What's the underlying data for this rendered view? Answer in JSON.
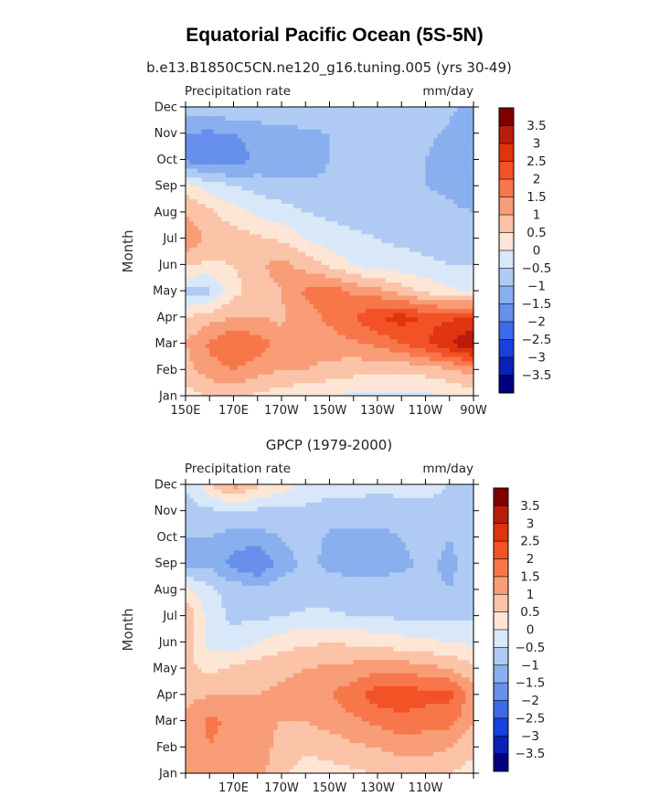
{
  "title": "Equatorial Pacific Ocean (5S-5N)",
  "chart_data": [
    {
      "type": "heatmap",
      "subtitle": "b.e13.B1850C5CN.ne120_g16.tuning.005 (yrs 30-49)",
      "variable_label": "Precipitation rate",
      "units": "mm/day",
      "ylabel": "Month",
      "y_ticks": [
        "Jan",
        "Feb",
        "Mar",
        "Apr",
        "May",
        "Jun",
        "Jul",
        "Aug",
        "Sep",
        "Oct",
        "Nov",
        "Dec"
      ],
      "x_ticks": [
        "150E",
        "170E",
        "170W",
        "150W",
        "130W",
        "110W",
        "90W"
      ],
      "x_range_deg_east": [
        150,
        270
      ],
      "rows": [
        "Jan",
        "Feb",
        "Mar",
        "Apr",
        "May",
        "Jun",
        "Jul",
        "Aug",
        "Sep",
        "Oct",
        "Nov",
        "Dec"
      ],
      "cols_lon_deg_east": [
        150,
        160,
        170,
        180,
        190,
        200,
        210,
        220,
        230,
        240,
        250,
        260,
        270
      ],
      "z": [
        [
          0.3,
          0.5,
          0.6,
          0.4,
          0.2,
          0.1,
          0.0,
          -0.1,
          -0.2,
          -0.2,
          -0.1,
          0.0,
          0.2
        ],
        [
          0.8,
          1.3,
          1.5,
          1.2,
          1.0,
          1.0,
          0.8,
          0.7,
          0.6,
          0.6,
          0.7,
          0.9,
          1.3
        ],
        [
          1.0,
          1.6,
          2.0,
          1.8,
          1.2,
          1.3,
          1.3,
          1.4,
          1.6,
          2.0,
          2.4,
          3.0,
          3.5
        ],
        [
          0.5,
          0.8,
          1.0,
          1.0,
          0.9,
          1.3,
          1.6,
          2.0,
          2.5,
          2.7,
          2.4,
          2.4,
          2.6
        ],
        [
          -0.8,
          -0.6,
          0.3,
          0.8,
          1.0,
          1.6,
          1.8,
          1.4,
          1.2,
          0.8,
          0.4,
          0.1,
          -0.1
        ],
        [
          0.6,
          0.4,
          0.5,
          0.9,
          1.2,
          0.8,
          0.4,
          0.0,
          -0.3,
          -0.3,
          -0.4,
          -0.5,
          -0.5
        ],
        [
          1.4,
          0.9,
          0.8,
          0.6,
          0.4,
          0.0,
          -0.3,
          -0.4,
          -0.5,
          -0.6,
          -0.7,
          -0.7,
          -0.8
        ],
        [
          1.0,
          0.6,
          0.2,
          -0.1,
          -0.3,
          -0.5,
          -0.6,
          -0.7,
          -0.7,
          -0.7,
          -0.8,
          -0.9,
          -1.0
        ],
        [
          0.2,
          -0.2,
          -0.5,
          -0.7,
          -0.8,
          -0.9,
          -0.9,
          -0.9,
          -0.9,
          -0.9,
          -1.0,
          -1.1,
          -1.3
        ],
        [
          -1.6,
          -1.9,
          -1.8,
          -1.4,
          -1.5,
          -1.3,
          -1.0,
          -0.9,
          -0.9,
          -0.8,
          -1.0,
          -1.2,
          -1.4
        ],
        [
          -1.5,
          -1.6,
          -1.5,
          -1.3,
          -1.2,
          -1.1,
          -1.0,
          -0.9,
          -0.9,
          -0.8,
          -0.9,
          -1.1,
          -1.4
        ],
        [
          -0.8,
          -0.7,
          -0.6,
          -0.6,
          -0.6,
          -0.6,
          -0.6,
          -0.6,
          -0.6,
          -0.6,
          -0.7,
          -0.9,
          -1.2
        ]
      ],
      "colorbar": {
        "labels": [
          "3.5",
          "3",
          "2.5",
          "2",
          "1.5",
          "1",
          "0.5",
          "0",
          "−0.5",
          "−1",
          "−1.5",
          "−2",
          "−2.5",
          "−3",
          "−3.5"
        ],
        "colors": [
          "#800000",
          "#b91c0b",
          "#e0340e",
          "#f35226",
          "#f7774b",
          "#f89d77",
          "#fbc3a7",
          "#fde6d6",
          "#d9e8f8",
          "#b0cbf3",
          "#8aafef",
          "#6690ec",
          "#3c6ae8",
          "#1840dc",
          "#0820b5",
          "#000080"
        ]
      }
    },
    {
      "type": "heatmap",
      "subtitle": "GPCP (1979-2000)",
      "variable_label": "Precipitation rate",
      "units": "mm/day",
      "ylabel": "Month",
      "y_ticks": [
        "Jan",
        "Feb",
        "Mar",
        "Apr",
        "May",
        "Jun",
        "Jul",
        "Aug",
        "Sep",
        "Oct",
        "Nov",
        "Dec"
      ],
      "x_ticks": [
        "170E",
        "170W",
        "150W",
        "130W",
        "110W"
      ],
      "x_range_deg_east": [
        150,
        270
      ],
      "rows": [
        "Jan",
        "Feb",
        "Mar",
        "Apr",
        "May",
        "Jun",
        "Jul",
        "Aug",
        "Sep",
        "Oct",
        "Nov",
        "Dec"
      ],
      "cols_lon_deg_east": [
        150,
        160,
        170,
        180,
        190,
        200,
        210,
        220,
        230,
        240,
        250,
        260,
        270
      ],
      "z": [
        [
          1.0,
          1.4,
          1.3,
          1.2,
          0.6,
          0.3,
          0.3,
          0.4,
          0.5,
          0.6,
          0.6,
          0.5,
          0.3
        ],
        [
          1.0,
          1.5,
          1.3,
          1.3,
          0.8,
          0.6,
          0.7,
          0.9,
          1.0,
          1.2,
          1.2,
          1.0,
          0.6
        ],
        [
          1.2,
          1.6,
          1.4,
          1.1,
          1.0,
          1.0,
          1.2,
          1.4,
          1.6,
          1.8,
          1.7,
          1.7,
          1.0
        ],
        [
          0.8,
          1.0,
          1.0,
          1.0,
          1.1,
          1.2,
          1.5,
          1.8,
          2.3,
          2.4,
          2.2,
          2.2,
          1.2
        ],
        [
          0.6,
          0.4,
          0.6,
          0.8,
          0.9,
          1.0,
          1.1,
          1.2,
          1.3,
          1.3,
          1.2,
          1.0,
          0.6
        ],
        [
          0.8,
          -0.2,
          -0.3,
          0.0,
          0.3,
          0.4,
          0.5,
          0.4,
          0.3,
          0.2,
          0.1,
          0.0,
          -0.1
        ],
        [
          1.0,
          -0.3,
          -0.6,
          -0.6,
          -0.5,
          -0.4,
          -0.4,
          -0.5,
          -0.5,
          -0.6,
          -0.6,
          -0.6,
          -0.6
        ],
        [
          0.2,
          -0.4,
          -0.7,
          -0.8,
          -0.8,
          -0.8,
          -0.8,
          -0.8,
          -0.8,
          -0.8,
          -0.9,
          -1.0,
          -0.8
        ],
        [
          -1.3,
          -1.1,
          -1.7,
          -2.1,
          -1.2,
          -0.9,
          -1.1,
          -1.2,
          -1.2,
          -1.1,
          -0.9,
          -1.1,
          -0.8
        ],
        [
          -1.0,
          -1.0,
          -1.2,
          -1.2,
          -1.0,
          -0.8,
          -1.1,
          -1.2,
          -1.2,
          -1.0,
          -0.8,
          -1.0,
          -0.8
        ],
        [
          -0.7,
          -0.6,
          -0.6,
          -0.6,
          -0.6,
          -0.6,
          -0.7,
          -0.7,
          -0.7,
          -0.6,
          -0.6,
          -0.6,
          -0.6
        ],
        [
          -0.5,
          0.4,
          1.2,
          0.6,
          0.3,
          -0.2,
          -0.3,
          -0.3,
          -0.4,
          -0.4,
          -0.4,
          -0.5,
          -0.5
        ]
      ],
      "colorbar": {
        "labels": [
          "3.5",
          "3",
          "2.5",
          "2",
          "1.5",
          "1",
          "0.5",
          "0",
          "−0.5",
          "−1",
          "−1.5",
          "−2",
          "−2.5",
          "−3",
          "−3.5"
        ],
        "colors": [
          "#800000",
          "#b91c0b",
          "#e0340e",
          "#f35226",
          "#f7774b",
          "#f89d77",
          "#fbc3a7",
          "#fde6d6",
          "#d9e8f8",
          "#b0cbf3",
          "#8aafef",
          "#6690ec",
          "#3c6ae8",
          "#1840dc",
          "#0820b5",
          "#000080"
        ]
      }
    }
  ]
}
